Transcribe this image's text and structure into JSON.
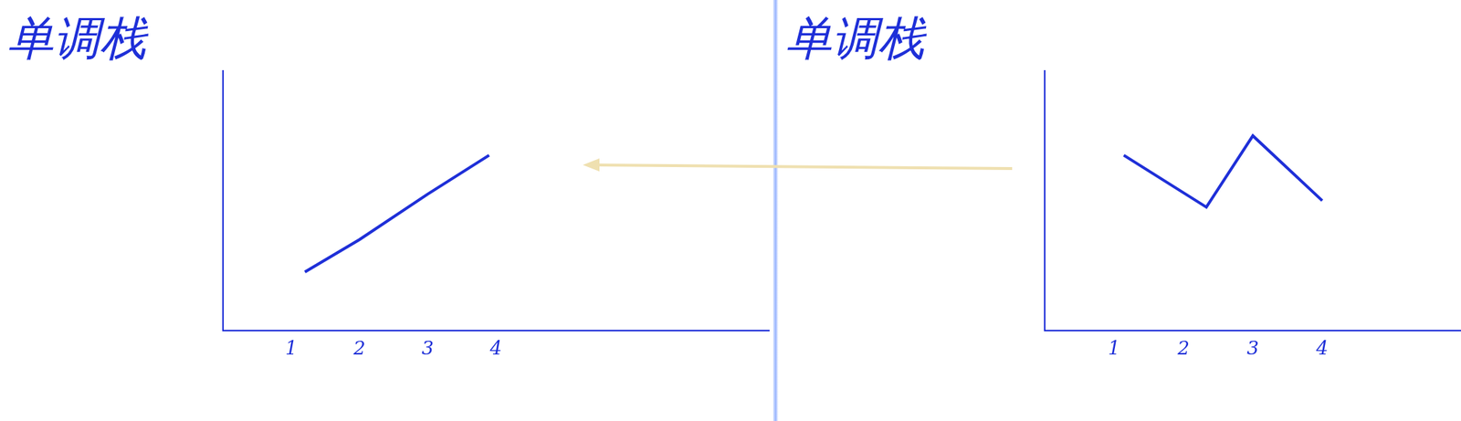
{
  "chart_data": [
    {
      "type": "line",
      "title": "单调栈",
      "x": [
        1.2,
        2,
        3,
        3.9
      ],
      "values": [
        0.9,
        1.4,
        2.1,
        2.7
      ],
      "color": "#1e2fd8",
      "xlim": [
        0,
        8
      ],
      "xticks": [
        1,
        2,
        3,
        4
      ],
      "ylim": [
        0,
        4
      ],
      "yticks": [],
      "grid": false,
      "tick_labels": "x",
      "marker": "none"
    },
    {
      "type": "line",
      "title": "单调栈",
      "x": [
        1.14,
        2.33,
        3,
        4
      ],
      "values": [
        2.7,
        1.9,
        3.0,
        2.0
      ],
      "color": "#1e2fd8",
      "xlim": [
        0,
        6
      ],
      "xticks": [
        1,
        2,
        3,
        4
      ],
      "ylim": [
        0,
        4
      ],
      "yticks": [],
      "grid": false,
      "tick_labels": "x",
      "marker": "none"
    }
  ]
}
